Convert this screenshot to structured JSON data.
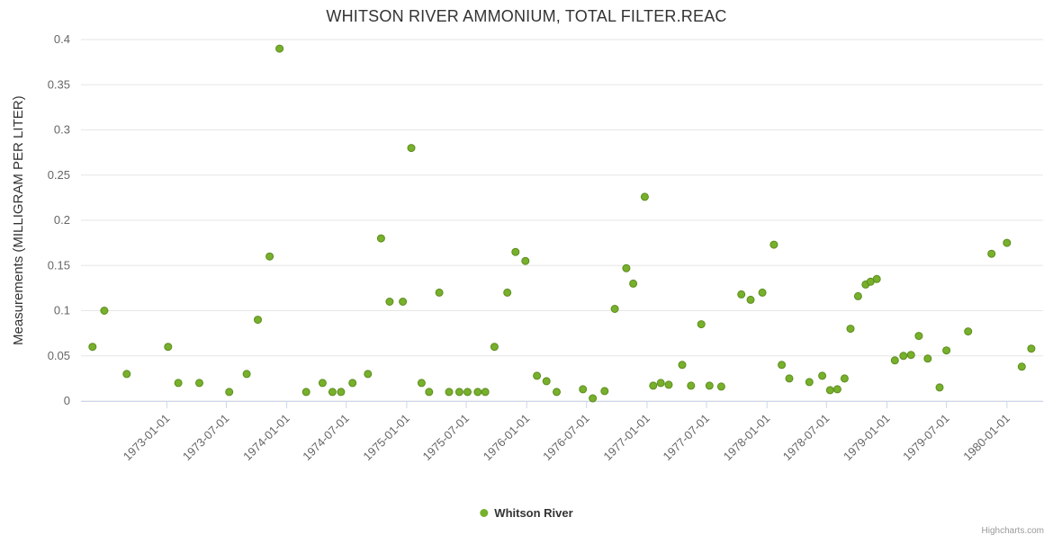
{
  "credits": "Highcharts.com",
  "chart_data": {
    "type": "scatter",
    "title": "WHITSON RIVER AMMONIUM, TOTAL FILTER.REAC",
    "xlabel": "",
    "ylabel": "Measurements (MILLIGRAM PER LITER)",
    "ylim": [
      0,
      0.4
    ],
    "y_tick_interval": 0.05,
    "x_range": [
      "1972-04-15",
      "1980-04-20"
    ],
    "x_ticks": [
      "1973-01-01",
      "1973-07-01",
      "1974-01-01",
      "1974-07-01",
      "1975-01-01",
      "1975-07-01",
      "1976-01-01",
      "1976-07-01",
      "1977-01-01",
      "1977-07-01",
      "1978-01-01",
      "1978-07-01",
      "1979-01-01",
      "1979-07-01",
      "1980-01-01"
    ],
    "grid": "horizontal",
    "grid_color": "#e6e6e6",
    "axis_line_color": "#ccd6eb",
    "marker_color": "#77b02a",
    "marker_stroke": "#5d8c21",
    "legend_position": "bottom-center",
    "series": [
      {
        "name": "Whitson River",
        "data": [
          [
            "1972-05-20",
            0.06
          ],
          [
            "1972-06-25",
            0.1
          ],
          [
            "1972-09-01",
            0.03
          ],
          [
            "1973-01-05",
            0.06
          ],
          [
            "1973-02-05",
            0.02
          ],
          [
            "1973-04-10",
            0.02
          ],
          [
            "1973-07-10",
            0.01
          ],
          [
            "1973-09-01",
            0.03
          ],
          [
            "1973-10-05",
            0.09
          ],
          [
            "1973-11-10",
            0.16
          ],
          [
            "1973-12-10",
            0.39
          ],
          [
            "1974-03-01",
            0.01
          ],
          [
            "1974-04-20",
            0.02
          ],
          [
            "1974-05-20",
            0.01
          ],
          [
            "1974-06-15",
            0.01
          ],
          [
            "1974-07-20",
            0.02
          ],
          [
            "1974-09-05",
            0.03
          ],
          [
            "1974-10-15",
            0.18
          ],
          [
            "1974-11-10",
            0.11
          ],
          [
            "1974-12-20",
            0.11
          ],
          [
            "1975-01-15",
            0.28
          ],
          [
            "1975-02-15",
            0.02
          ],
          [
            "1975-03-10",
            0.01
          ],
          [
            "1975-04-10",
            0.12
          ],
          [
            "1975-05-10",
            0.01
          ],
          [
            "1975-06-10",
            0.01
          ],
          [
            "1975-07-05",
            0.01
          ],
          [
            "1975-08-05",
            0.01
          ],
          [
            "1975-08-28",
            0.01
          ],
          [
            "1975-09-25",
            0.06
          ],
          [
            "1975-11-03",
            0.12
          ],
          [
            "1975-11-28",
            0.165
          ],
          [
            "1975-12-28",
            0.155
          ],
          [
            "1976-02-01",
            0.028
          ],
          [
            "1976-03-01",
            0.022
          ],
          [
            "1976-04-01",
            0.01
          ],
          [
            "1976-06-20",
            0.013
          ],
          [
            "1976-07-20",
            0.003
          ],
          [
            "1976-08-25",
            0.011
          ],
          [
            "1976-09-25",
            0.102
          ],
          [
            "1976-10-30",
            0.147
          ],
          [
            "1976-11-20",
            0.13
          ],
          [
            "1976-12-25",
            0.226
          ],
          [
            "1977-01-20",
            0.017
          ],
          [
            "1977-02-12",
            0.02
          ],
          [
            "1977-03-08",
            0.018
          ],
          [
            "1977-04-18",
            0.04
          ],
          [
            "1977-05-15",
            0.017
          ],
          [
            "1977-06-15",
            0.085
          ],
          [
            "1977-07-10",
            0.017
          ],
          [
            "1977-08-15",
            0.016
          ],
          [
            "1977-10-15",
            0.118
          ],
          [
            "1977-11-12",
            0.112
          ],
          [
            "1977-12-18",
            0.12
          ],
          [
            "1978-01-22",
            0.173
          ],
          [
            "1978-02-15",
            0.04
          ],
          [
            "1978-03-10",
            0.025
          ],
          [
            "1978-05-10",
            0.021
          ],
          [
            "1978-06-18",
            0.028
          ],
          [
            "1978-07-12",
            0.012
          ],
          [
            "1978-08-03",
            0.013
          ],
          [
            "1978-08-25",
            0.025
          ],
          [
            "1978-09-12",
            0.08
          ],
          [
            "1978-10-05",
            0.116
          ],
          [
            "1978-10-28",
            0.129
          ],
          [
            "1978-11-12",
            0.132
          ],
          [
            "1978-12-01",
            0.135
          ],
          [
            "1979-01-25",
            0.045
          ],
          [
            "1979-02-20",
            0.05
          ],
          [
            "1979-03-15",
            0.051
          ],
          [
            "1979-04-08",
            0.072
          ],
          [
            "1979-05-05",
            0.047
          ],
          [
            "1979-06-10",
            0.015
          ],
          [
            "1979-07-01",
            0.056
          ],
          [
            "1979-09-05",
            0.077
          ],
          [
            "1979-11-15",
            0.163
          ],
          [
            "1980-01-01",
            0.175
          ],
          [
            "1980-02-15",
            0.038
          ],
          [
            "1980-03-15",
            0.058
          ]
        ]
      }
    ]
  }
}
